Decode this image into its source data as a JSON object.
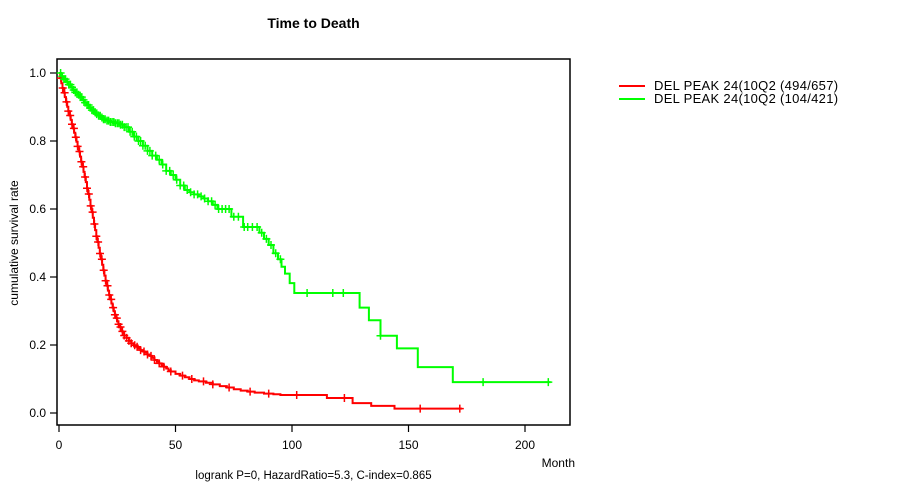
{
  "title": "Time to Death",
  "caption": "logrank P=0, HazardRatio=5.3, C-index=0.865",
  "colors": {
    "series_red": "#ff0000",
    "series_green": "#00ff00",
    "axis": "#000000",
    "background": "#ffffff"
  },
  "legend": {
    "items": [
      {
        "label": "DEL PEAK 24(10Q2 (494/657)",
        "color": "#ff0000"
      },
      {
        "label": "DEL PEAK 24(10Q2 (104/421)",
        "color": "#00ff00"
      }
    ]
  },
  "axes": {
    "x": {
      "label": "Month",
      "ticks": [
        0,
        50,
        100,
        150,
        200
      ],
      "range": [
        0,
        220
      ]
    },
    "y": {
      "label": "cumulative survival rate",
      "ticks": [
        {
          "v": 0.0,
          "label": "0.0"
        },
        {
          "v": 0.2,
          "label": "0.2"
        },
        {
          "v": 0.4,
          "label": "0.4"
        },
        {
          "v": 0.6,
          "label": "0.6"
        },
        {
          "v": 0.8,
          "label": "0.8"
        },
        {
          "v": 1.0,
          "label": "1.0"
        }
      ],
      "range": [
        0,
        1
      ]
    }
  },
  "chart_data": {
    "type": "line",
    "subtype": "kaplan-meier-step",
    "title": "Time to Death",
    "xlabel": "Month",
    "ylabel": "cumulative survival rate",
    "xlim": [
      0,
      220
    ],
    "ylim": [
      0,
      1.04
    ],
    "grid": false,
    "legend_position": "right-outside-top",
    "annotation": "logrank P=0, HazardRatio=5.3, C-index=0.865",
    "series": [
      {
        "name": "DEL PEAK 24(10Q2 (494/657)",
        "color": "#ff0000",
        "points": [
          [
            0,
            1.0
          ],
          [
            0.5,
            0.985
          ],
          [
            1,
            0.97
          ],
          [
            1.5,
            0.956
          ],
          [
            2,
            0.942
          ],
          [
            2.5,
            0.929
          ],
          [
            3,
            0.915
          ],
          [
            3.5,
            0.901
          ],
          [
            4,
            0.888
          ],
          [
            4.5,
            0.875
          ],
          [
            5,
            0.862
          ],
          [
            5.5,
            0.849
          ],
          [
            6,
            0.837
          ],
          [
            6.5,
            0.824
          ],
          [
            7,
            0.811
          ],
          [
            7.5,
            0.798
          ],
          [
            8,
            0.784
          ],
          [
            8.5,
            0.769
          ],
          [
            9,
            0.754
          ],
          [
            9.5,
            0.739
          ],
          [
            10,
            0.724
          ],
          [
            10.5,
            0.709
          ],
          [
            11,
            0.694
          ],
          [
            11.5,
            0.679
          ],
          [
            12,
            0.661
          ],
          [
            12.5,
            0.644
          ],
          [
            13,
            0.627
          ],
          [
            13.5,
            0.609
          ],
          [
            14,
            0.591
          ],
          [
            14.5,
            0.574
          ],
          [
            15,
            0.556
          ],
          [
            15.5,
            0.538
          ],
          [
            16,
            0.52
          ],
          [
            16.5,
            0.503
          ],
          [
            17,
            0.486
          ],
          [
            17.5,
            0.469
          ],
          [
            18,
            0.452
          ],
          [
            18.5,
            0.436
          ],
          [
            19,
            0.42
          ],
          [
            19.5,
            0.404
          ],
          [
            20,
            0.389
          ],
          [
            20.5,
            0.374
          ],
          [
            21,
            0.36
          ],
          [
            21.5,
            0.347
          ],
          [
            22,
            0.334
          ],
          [
            22.5,
            0.322
          ],
          [
            23,
            0.31
          ],
          [
            23.5,
            0.299
          ],
          [
            24,
            0.289
          ],
          [
            24.5,
            0.279
          ],
          [
            25,
            0.269
          ],
          [
            25.5,
            0.261
          ],
          [
            26,
            0.253
          ],
          [
            26.5,
            0.246
          ],
          [
            27,
            0.24
          ],
          [
            27.5,
            0.234
          ],
          [
            28,
            0.228
          ],
          [
            29,
            0.221
          ],
          [
            30,
            0.212
          ],
          [
            31,
            0.205
          ],
          [
            32,
            0.199
          ],
          [
            33,
            0.195
          ],
          [
            34,
            0.19
          ],
          [
            35,
            0.185
          ],
          [
            36,
            0.181
          ],
          [
            37,
            0.177
          ],
          [
            38,
            0.172
          ],
          [
            39,
            0.168
          ],
          [
            40,
            0.162
          ],
          [
            41,
            0.156
          ],
          [
            42,
            0.151
          ],
          [
            43,
            0.146
          ],
          [
            44,
            0.141
          ],
          [
            45,
            0.136
          ],
          [
            46,
            0.131
          ],
          [
            47,
            0.126
          ],
          [
            48,
            0.122
          ],
          [
            50,
            0.115
          ],
          [
            52,
            0.11
          ],
          [
            54,
            0.105
          ],
          [
            56,
            0.1
          ],
          [
            58,
            0.096
          ],
          [
            60,
            0.093
          ],
          [
            63,
            0.089
          ],
          [
            66,
            0.084
          ],
          [
            69,
            0.079
          ],
          [
            72,
            0.075
          ],
          [
            75,
            0.07
          ],
          [
            78,
            0.066
          ],
          [
            81,
            0.063
          ],
          [
            84,
            0.06
          ],
          [
            88,
            0.057
          ],
          [
            92,
            0.055
          ],
          [
            95,
            0.053
          ],
          [
            115,
            0.044
          ],
          [
            126,
            0.029
          ],
          [
            134,
            0.021
          ],
          [
            144,
            0.013
          ],
          [
            173,
            0.013
          ]
        ],
        "censor_months": [
          0.8,
          1.6,
          2.4,
          3.2,
          4,
          4.8,
          5.6,
          6.4,
          7.2,
          8,
          8.8,
          9.6,
          10.4,
          11.2,
          12,
          12.8,
          13.6,
          14.4,
          15.2,
          16,
          16.8,
          17.6,
          18.4,
          19.2,
          20,
          20.8,
          21.6,
          22.4,
          23.2,
          24,
          24.8,
          25.6,
          26.4,
          27.2,
          28,
          29,
          30,
          31,
          32.5,
          33.5,
          35,
          36.5,
          38,
          39.5,
          41,
          43,
          45,
          48,
          53,
          57,
          62,
          66,
          73,
          82,
          90,
          102,
          122.5,
          155,
          172
        ]
      },
      {
        "name": "DEL PEAK 24(10Q2 (104/421)",
        "color": "#00ff00",
        "points": [
          [
            0,
            1.0
          ],
          [
            1,
            0.99
          ],
          [
            2,
            0.982
          ],
          [
            3,
            0.974
          ],
          [
            4,
            0.966
          ],
          [
            5,
            0.958
          ],
          [
            6,
            0.95
          ],
          [
            7,
            0.943
          ],
          [
            8,
            0.936
          ],
          [
            9,
            0.929
          ],
          [
            10,
            0.921
          ],
          [
            11,
            0.913
          ],
          [
            12,
            0.906
          ],
          [
            13,
            0.898
          ],
          [
            14,
            0.891
          ],
          [
            15,
            0.885
          ],
          [
            16,
            0.879
          ],
          [
            17,
            0.874
          ],
          [
            18,
            0.869
          ],
          [
            19,
            0.864
          ],
          [
            20,
            0.86
          ],
          [
            22,
            0.856
          ],
          [
            24,
            0.852
          ],
          [
            26,
            0.848
          ],
          [
            28,
            0.841
          ],
          [
            30,
            0.827
          ],
          [
            32,
            0.813
          ],
          [
            34,
            0.8
          ],
          [
            36,
            0.786
          ],
          [
            38,
            0.771
          ],
          [
            40,
            0.757
          ],
          [
            42,
            0.745
          ],
          [
            44,
            0.731
          ],
          [
            46,
            0.712
          ],
          [
            48,
            0.7
          ],
          [
            50,
            0.686
          ],
          [
            52,
            0.669
          ],
          [
            54,
            0.656
          ],
          [
            56,
            0.649
          ],
          [
            58,
            0.643
          ],
          [
            60,
            0.637
          ],
          [
            62,
            0.631
          ],
          [
            64,
            0.623
          ],
          [
            66,
            0.612
          ],
          [
            68,
            0.6
          ],
          [
            74,
            0.577
          ],
          [
            79,
            0.547
          ],
          [
            86,
            0.53
          ],
          [
            88,
            0.512
          ],
          [
            90,
            0.494
          ],
          [
            92,
            0.47
          ],
          [
            94,
            0.452
          ],
          [
            95.5,
            0.43
          ],
          [
            97,
            0.41
          ],
          [
            99,
            0.382
          ],
          [
            101,
            0.353
          ],
          [
            129,
            0.31
          ],
          [
            133,
            0.273
          ],
          [
            138,
            0.227
          ],
          [
            145,
            0.19
          ],
          [
            154,
            0.135
          ],
          [
            169,
            0.091
          ],
          [
            211,
            0.091
          ]
        ],
        "censor_months": [
          0.7,
          1.4,
          2.1,
          2.8,
          3.5,
          4.2,
          4.9,
          5.6,
          6.3,
          7,
          7.7,
          8.4,
          9.1,
          9.8,
          10.5,
          11.2,
          12,
          12.7,
          13.4,
          14.1,
          14.8,
          15.5,
          16.2,
          17,
          17.7,
          18.4,
          19.1,
          19.8,
          20.6,
          21.3,
          22,
          22.8,
          23.5,
          24.2,
          25,
          25.7,
          26.4,
          27.2,
          28,
          28.8,
          29.6,
          30.5,
          31.4,
          32.3,
          33.2,
          34.1,
          35,
          36,
          37,
          38,
          39,
          40,
          41.5,
          43,
          44.5,
          46,
          47.5,
          49,
          50.5,
          52,
          53.5,
          55,
          56.5,
          58,
          59.5,
          61,
          62.5,
          64,
          65.5,
          67,
          68.5,
          70,
          71.5,
          73,
          75,
          77,
          79.5,
          81,
          83,
          85,
          87,
          89,
          91,
          93,
          95,
          106.5,
          117.5,
          122,
          138,
          182,
          210
        ]
      }
    ]
  }
}
